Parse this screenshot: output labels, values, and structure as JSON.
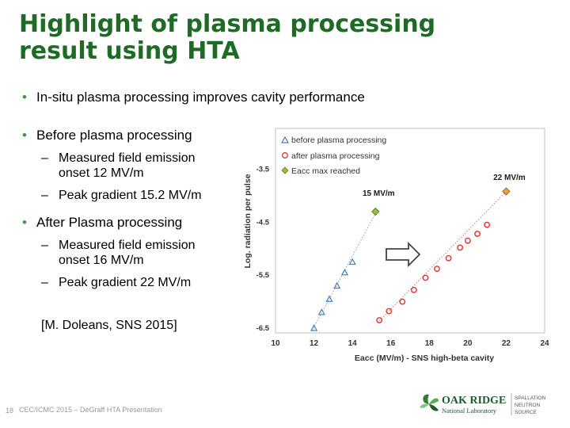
{
  "slide": {
    "title_line1": "Highlight of plasma processing",
    "title_line2": "result using HTA",
    "bullet1": "In-situ plasma processing improves cavity performance",
    "bullet2": "Before plasma processing",
    "bullet2_sub1_line1": "Measured field emission",
    "bullet2_sub1_line2": "onset 12 MV/m",
    "bullet2_sub2": "Peak gradient 15.2 MV/m",
    "bullet3": "After Plasma processing",
    "bullet3_sub1_line1": "Measured field emission",
    "bullet3_sub1_line2": "onset 16 MV/m",
    "bullet3_sub2": "Peak gradient 22 MV/m",
    "citation": "[M. Doleans, SNS 2015]",
    "slide_number": "18",
    "footer": "CEC/ICMC 2015 – DeGraff HTA Presentation",
    "logo": {
      "org_line1": "OAK RIDGE",
      "org_line2": "National Laboratory",
      "facility_line1": "SPALLATION",
      "facility_line2": "NEUTRON",
      "facility_line3": "SOURCE"
    }
  },
  "chart_data": {
    "type": "scatter",
    "xlabel": "Eacc (MV/m) - SNS high-beta cavity",
    "ylabel": "Log. radiation per pulse",
    "xlim": [
      10,
      24
    ],
    "ylim": [
      -6.5,
      -3.0
    ],
    "xticks": [
      10,
      12,
      14,
      16,
      18,
      20,
      22,
      24
    ],
    "yticks": [
      -3.5,
      -4.5,
      -5.5,
      -6.5
    ],
    "series": [
      {
        "name": "before plasma processing",
        "marker": "triangle",
        "color": "#4a7fb5",
        "x": [
          12.0,
          12.4,
          12.8,
          13.2,
          13.6,
          14.0
        ],
        "y": [
          -6.5,
          -6.2,
          -5.95,
          -5.7,
          -5.45,
          -5.25
        ]
      },
      {
        "name": "after plasma processing",
        "marker": "circle",
        "color": "#e03030",
        "x": [
          15.4,
          15.9,
          16.6,
          17.2,
          17.8,
          18.4,
          19.0,
          19.6,
          20.0,
          20.5,
          21.0
        ],
        "y": [
          -6.35,
          -6.18,
          -6.0,
          -5.78,
          -5.55,
          -5.38,
          -5.18,
          -4.98,
          -4.85,
          -4.72,
          -4.55
        ]
      },
      {
        "name": "Eacc max reached",
        "marker": "diamond",
        "color": "#e8a31c",
        "x": [
          15.2,
          22.0
        ],
        "y": [
          -4.3,
          -3.92
        ]
      }
    ],
    "annotations": [
      {
        "text": "15 MV/m",
        "x": 15.2,
        "y": -4.0
      },
      {
        "text": "22 MV/m",
        "x": 22.0,
        "y": -3.7
      }
    ],
    "legend": "top-left",
    "colors": {
      "title": "#1e6b26",
      "diamond_before": "#8cc63f",
      "diamond_after": "#f0a030",
      "frame": "#bfbfbf"
    }
  }
}
